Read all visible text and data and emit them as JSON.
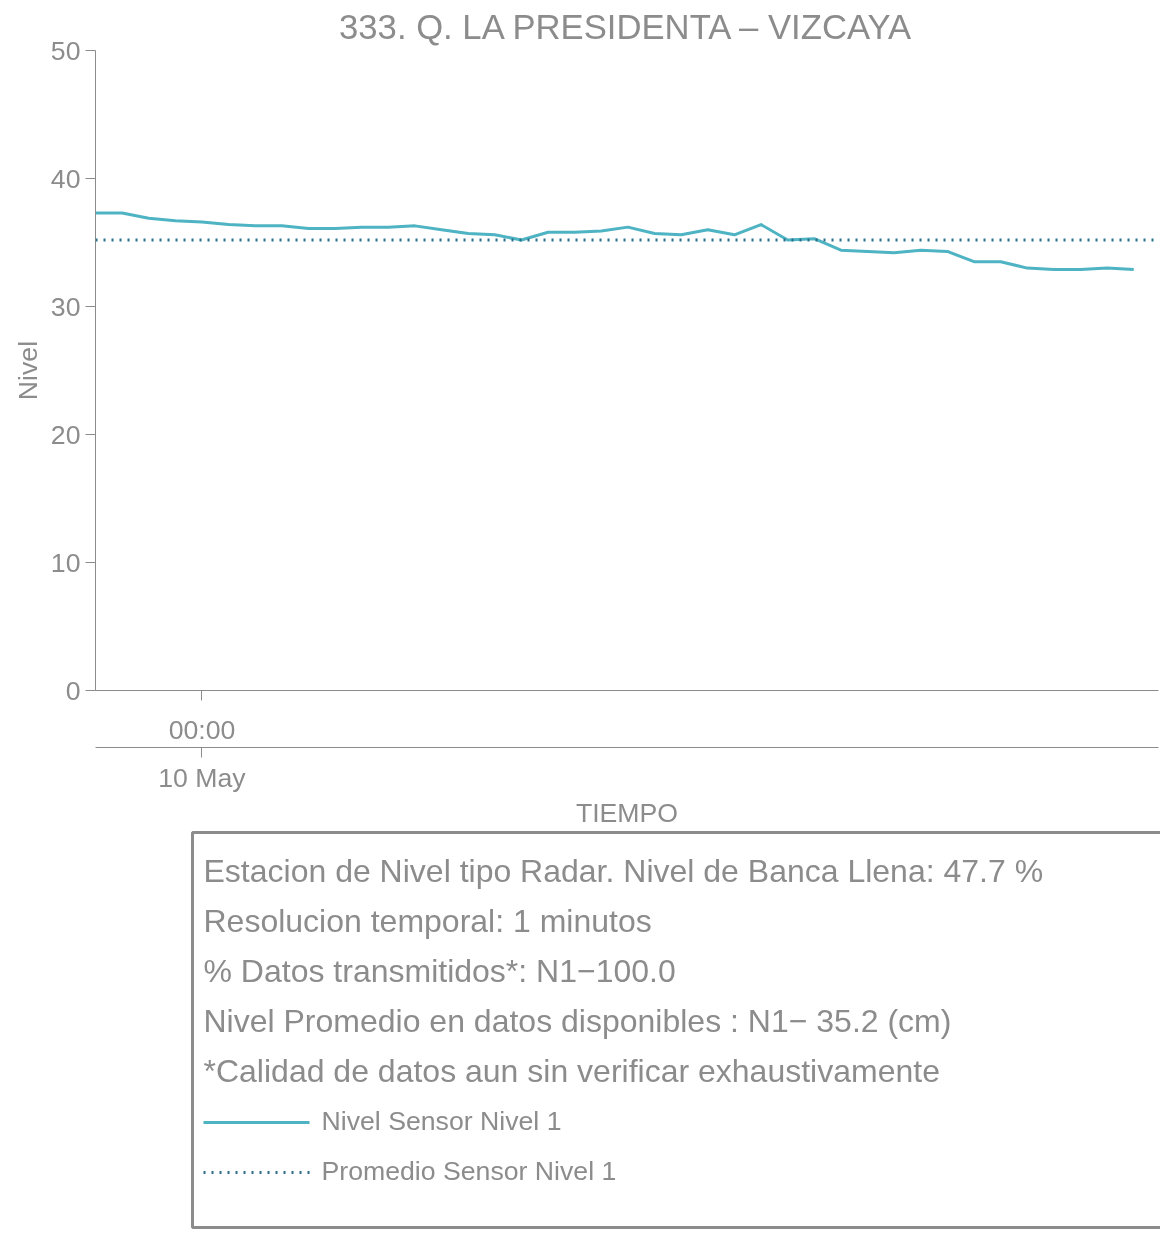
{
  "chart_data": {
    "type": "line",
    "title": "333. Q. LA PRESIDENTA – VIZCAYA",
    "xlabel": "TIEMPO",
    "ylabel": "Nivel",
    "categories": [
      null,
      null,
      null,
      null,
      "00:00",
      null,
      null,
      null,
      null,
      null,
      null,
      null,
      null,
      null,
      null,
      null,
      null,
      null,
      null,
      null,
      null,
      null,
      null,
      null,
      null,
      null,
      null,
      null,
      null,
      null,
      null,
      null,
      null,
      null,
      null,
      null,
      null,
      null,
      null,
      null
    ],
    "series": [
      {
        "name": "Nivel Sensor Nivel 1",
        "color": "#4eb3c3",
        "values": [
          37.3,
          37.3,
          36.9,
          36.7,
          36.6,
          36.4,
          36.3,
          36.3,
          36.1,
          36.1,
          36.2,
          36.2,
          36.3,
          36.0,
          35.7,
          35.6,
          35.2,
          35.8,
          35.8,
          35.9,
          36.2,
          35.7,
          35.6,
          36.0,
          35.6,
          36.4,
          35.2,
          35.3,
          34.4,
          34.3,
          34.2,
          34.4,
          34.3,
          33.5,
          33.5,
          33.0,
          32.9,
          32.9,
          33.0,
          32.9
        ]
      }
    ],
    "ref_lines": [
      {
        "axis": "y",
        "value": 35.2,
        "label": "Promedio Sensor Nivel 1",
        "color": "#2a6f8a",
        "line_style": "dotted"
      }
    ],
    "ylim": [
      0,
      50
    ],
    "yticks": [
      0,
      10,
      20,
      30,
      40,
      50
    ],
    "grid": false,
    "legend": "bottom",
    "annotations": [
      "10 May",
      "Estacion de Nivel tipo Radar. Nivel de Banca Llena: 47.7 %",
      "Resolucion temporal: 1 minutos",
      "% Datos transmitidos*: N1−100.0",
      "Nivel Promedio en datos disponibles : N1− 35.2 (cm)",
      "*Calidad de datos aun sin verificar exhaustivamente"
    ]
  }
}
